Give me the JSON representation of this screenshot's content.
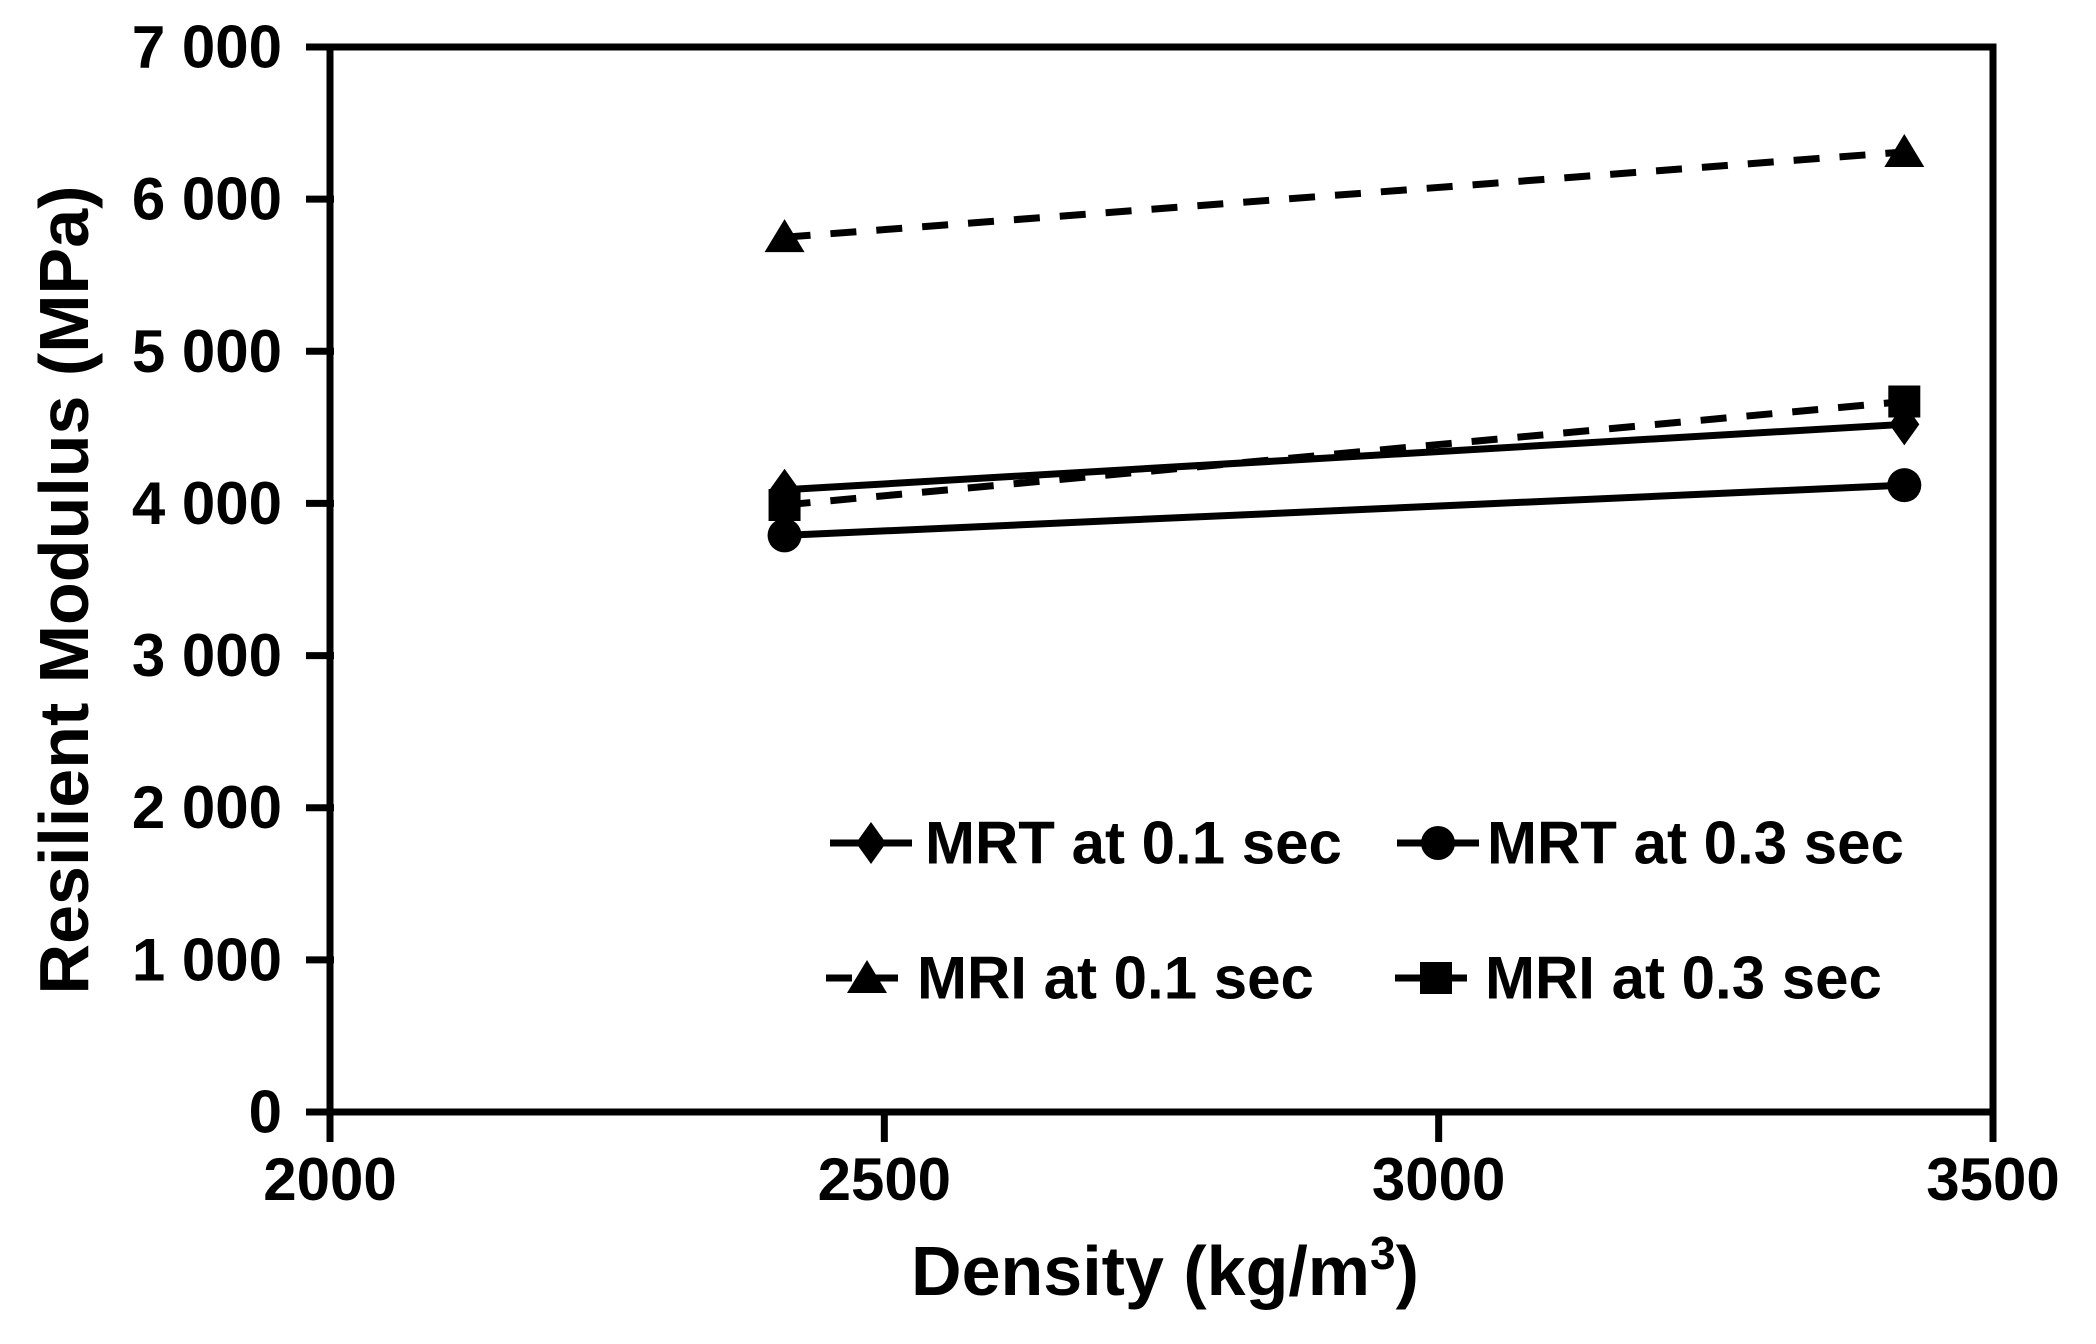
{
  "figure": {
    "background_color": "#ffffff",
    "ink_color": "#000000"
  },
  "chart_data": {
    "type": "line",
    "title": "",
    "xlabel": "Density (kg/m³)",
    "xlabel_parts": {
      "main": "Density (kg/m",
      "sup": "3",
      "close": ")"
    },
    "ylabel": "Resilient Modulus (MPa)",
    "xlim": [
      2000,
      3500
    ],
    "ylim": [
      0,
      7000
    ],
    "x_ticks": [
      2000,
      2500,
      3000,
      3500
    ],
    "x_tick_labels": [
      "2000",
      "2500",
      "3000",
      "3500"
    ],
    "y_ticks": [
      0,
      1000,
      2000,
      3000,
      4000,
      5000,
      6000,
      7000
    ],
    "y_tick_labels": [
      "0",
      "1 000",
      "2 000",
      "3 000",
      "4 000",
      "5 000",
      "6 000",
      "7 000"
    ],
    "grid": false,
    "legend_position": "inside lower-center, 2 columns",
    "series": [
      {
        "name": "MRT at 0.1 sec",
        "marker": "diamond",
        "line": "solid",
        "x": [
          2410,
          3420
        ],
        "y": [
          4090,
          4520
        ]
      },
      {
        "name": "MRT at 0.3 sec",
        "marker": "circle",
        "line": "solid",
        "x": [
          2410,
          3420
        ],
        "y": [
          3790,
          4120
        ]
      },
      {
        "name": "MRI at 0.1 sec",
        "marker": "triangle",
        "line": "dashed",
        "x": [
          2410,
          3420
        ],
        "y": [
          5750,
          6310
        ]
      },
      {
        "name": "MRI at 0.3 sec",
        "marker": "square",
        "line": "dashed",
        "x": [
          2410,
          3420
        ],
        "y": [
          3990,
          4670
        ]
      }
    ],
    "legend_order": [
      0,
      1,
      2,
      3
    ]
  }
}
